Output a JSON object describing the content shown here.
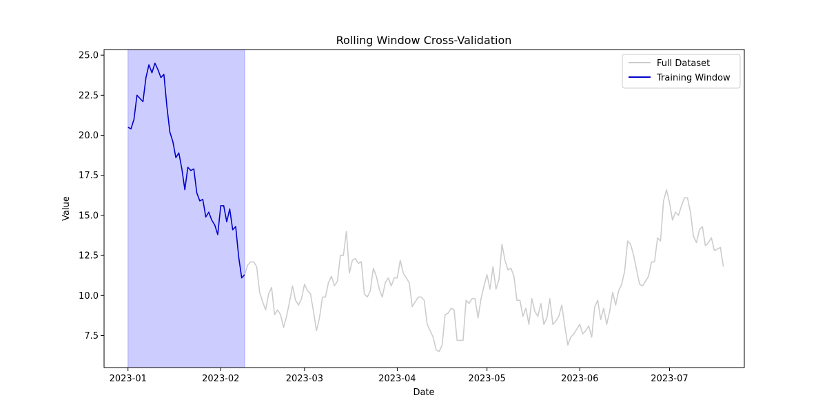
{
  "chart_data": {
    "type": "line",
    "title": "Rolling Window Cross-Validation",
    "xlabel": "Date",
    "ylabel": "Value",
    "x_range": [
      "2022-12-24",
      "2023-07-26"
    ],
    "ylim": [
      5.5,
      25.35
    ],
    "x_ticks": [
      "2023-01-01",
      "2023-02-01",
      "2023-03-01",
      "2023-04-01",
      "2023-05-01",
      "2023-06-01",
      "2023-07-01"
    ],
    "x_tick_labels": [
      "2023-01",
      "2023-02",
      "2023-03",
      "2023-04",
      "2023-05",
      "2023-06",
      "2023-07"
    ],
    "y_ticks": [
      7.5,
      10.0,
      12.5,
      15.0,
      17.5,
      20.0,
      22.5,
      25.0
    ],
    "y_tick_labels": [
      "7.5",
      "10.0",
      "12.5",
      "15.0",
      "17.5",
      "20.0",
      "22.5",
      "25.0"
    ],
    "grid": false,
    "legend_position": "top-right",
    "training_window": {
      "start": "2023-01-01",
      "end": "2023-02-09",
      "color": "#0000ff",
      "alpha": 0.2
    },
    "series": [
      {
        "name": "Full Dataset",
        "color": "#cccccc",
        "start_date": "2023-01-01",
        "values": [
          20.5,
          20.4,
          21.0,
          22.5,
          22.3,
          22.1,
          23.6,
          24.4,
          23.9,
          24.5,
          24.1,
          23.6,
          23.8,
          21.8,
          20.2,
          19.6,
          18.6,
          18.9,
          17.9,
          16.6,
          18.0,
          17.8,
          17.9,
          16.4,
          15.9,
          16.0,
          14.9,
          15.2,
          14.7,
          14.4,
          13.8,
          15.6,
          15.6,
          14.6,
          15.4,
          14.1,
          14.3,
          12.4,
          11.1,
          11.3,
          11.9,
          12.1,
          12.1,
          11.8,
          10.2,
          9.6,
          9.1,
          10.1,
          10.5,
          8.8,
          9.1,
          8.8,
          8.0,
          8.7,
          9.6,
          10.6,
          9.7,
          9.4,
          9.8,
          10.7,
          10.3,
          10.1,
          9.0,
          7.8,
          8.6,
          9.9,
          9.9,
          10.8,
          11.2,
          10.6,
          10.9,
          12.5,
          12.5,
          14.0,
          11.4,
          12.2,
          12.3,
          12.0,
          12.1,
          10.1,
          9.9,
          10.3,
          11.7,
          11.2,
          10.4,
          9.9,
          10.8,
          11.1,
          10.6,
          11.1,
          11.1,
          12.2,
          11.4,
          11.1,
          10.8,
          9.3,
          9.6,
          9.9,
          9.9,
          9.7,
          8.2,
          7.8,
          7.4,
          6.6,
          6.5,
          6.9,
          8.8,
          8.9,
          9.2,
          9.1,
          7.2,
          7.2,
          7.2,
          9.7,
          9.5,
          9.8,
          9.8,
          8.6,
          9.8,
          10.6,
          11.3,
          10.4,
          11.8,
          10.4,
          11.0,
          13.2,
          12.2,
          11.6,
          11.7,
          11.2,
          9.7,
          9.7,
          8.7,
          9.2,
          8.2,
          9.8,
          9.0,
          8.7,
          9.5,
          8.2,
          8.6,
          9.8,
          8.2,
          8.4,
          8.7,
          9.4,
          8.1,
          6.9,
          7.4,
          7.6,
          7.9,
          8.2,
          7.6,
          7.8,
          8.1,
          7.4,
          9.3,
          9.7,
          8.5,
          9.2,
          8.2,
          9.0,
          10.2,
          9.4,
          10.3,
          10.7,
          11.5,
          13.4,
          13.2,
          12.5,
          11.6,
          10.7,
          10.6,
          10.9,
          11.2,
          12.1,
          12.1,
          13.6,
          13.4,
          15.9,
          16.6,
          15.8,
          14.7,
          15.2,
          15.0,
          15.6,
          16.1,
          16.1,
          15.2,
          13.7,
          13.3,
          14.1,
          14.3,
          13.1,
          13.3,
          13.6,
          12.8,
          12.9,
          13.0,
          11.8
        ]
      },
      {
        "name": "Training Window",
        "color": "#0000cc",
        "start_date": "2023-01-01",
        "values": [
          20.5,
          20.4,
          21.0,
          22.5,
          22.3,
          22.1,
          23.6,
          24.4,
          23.9,
          24.5,
          24.1,
          23.6,
          23.8,
          21.8,
          20.2,
          19.6,
          18.6,
          18.9,
          17.9,
          16.6,
          18.0,
          17.8,
          17.9,
          16.4,
          15.9,
          16.0,
          14.9,
          15.2,
          14.7,
          14.4,
          13.8,
          15.6,
          15.6,
          14.6,
          15.4,
          14.1,
          14.3,
          12.4,
          11.1,
          11.3
        ]
      }
    ]
  }
}
